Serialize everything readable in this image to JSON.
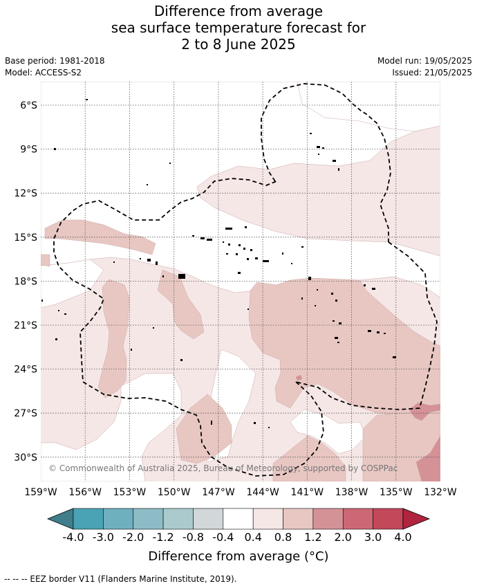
{
  "title": {
    "line1": "Difference from average",
    "line2": "sea surface temperature forecast for",
    "line3": "2 to 8 June 2025"
  },
  "meta": {
    "base_period": "Base period: 1981-2018",
    "model": "Model: ACCESS-S2",
    "model_run": "Model run: 19/05/2025",
    "issued": "Issued: 21/05/2025"
  },
  "map": {
    "lat_labels": [
      "6°S",
      "9°S",
      "12°S",
      "15°S",
      "18°S",
      "21°S",
      "24°S",
      "27°S",
      "30°S"
    ],
    "lon_labels": [
      "159°W",
      "156°W",
      "153°W",
      "150°W",
      "147°W",
      "144°W",
      "141°W",
      "138°W",
      "135°W",
      "132°W"
    ],
    "copyright": "© Commonwealth of Australia 2025, Bureau of Meteorology, supported by COSPPac"
  },
  "colorbar": {
    "levels": [
      "-4.0",
      "-3.0",
      "-2.0",
      "-1.2",
      "-0.8",
      "-0.4",
      "0.4",
      "0.8",
      "1.2",
      "2.0",
      "3.0",
      "4.0"
    ],
    "colors": [
      "#3f7e8a",
      "#4aa3b4",
      "#6fb0bf",
      "#8dbcc7",
      "#aacacd",
      "#d2d8d9",
      "#ffffff",
      "#f5e7e6",
      "#e8c7c3",
      "#d59296",
      "#cc6875",
      "#c2485a",
      "#b0243f"
    ],
    "label": "Difference from average (°C)"
  },
  "footnote": "-- -- -- EEZ border V11 (Flanders Marine Institute, 2019)."
}
